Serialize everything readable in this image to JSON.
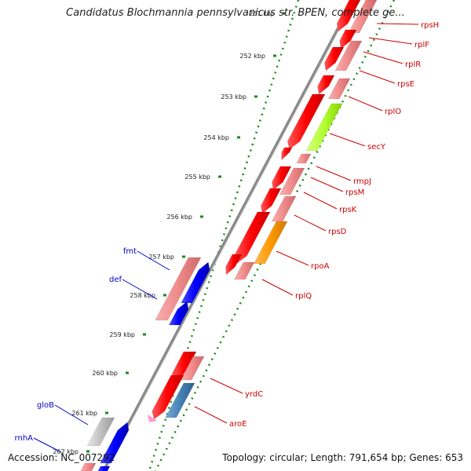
{
  "title": "Candidatus Blochmannia pennsylvanicus str. BPEN, complete ge...",
  "accession": "Accession: NC_007292",
  "summary": "Topology: circular; Length: 791,654 bp; Genes: 653",
  "ticks": [
    "251 kbp",
    "252 kbp",
    "253 kbp",
    "254 kbp",
    "255 kbp",
    "256 kbp",
    "257 kbp",
    "258 kbp",
    "259 kbp",
    "260 kbp",
    "261 kbp",
    "262 kbp"
  ],
  "genes_right": [
    "rpsH",
    "rplF",
    "rplR",
    "rpsE",
    "rplO",
    "secY",
    "rmpJ",
    "rpsM",
    "rpsK",
    "rpsD",
    "rpoA",
    "rplQ",
    "yrdC",
    "aroE"
  ],
  "genes_left": [
    "fmt",
    "def",
    "gloB",
    "rnhA"
  ],
  "colors": {
    "right_label": "#cc0000",
    "left_label": "#0000cc",
    "cds_red": "#ff0000",
    "cds_pink": "#f08a8a",
    "cds_blue": "#0000ff",
    "cds_green": "#b0ff30",
    "cds_orange": "#ff9900",
    "cds_steel": "#4682b4",
    "cds_grey": "#b4b4b4",
    "backbone": "#8a8a8a",
    "tick_dots": "#1a8a1a"
  }
}
